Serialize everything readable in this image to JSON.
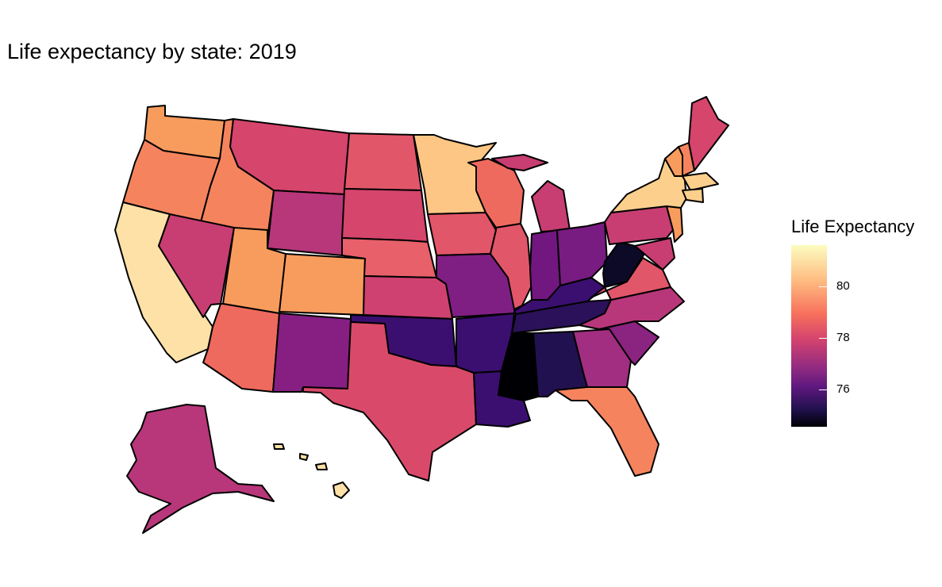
{
  "title": "Life expectancy by state: 2019",
  "legend": {
    "title": "Life Expectancy",
    "ticks": [
      "80",
      "78",
      "76"
    ],
    "colors": [
      "#fcfdbf",
      "#feba80",
      "#f7705c",
      "#d3436e",
      "#982d80",
      "#5f187f",
      "#221150",
      "#000004"
    ]
  }
}
